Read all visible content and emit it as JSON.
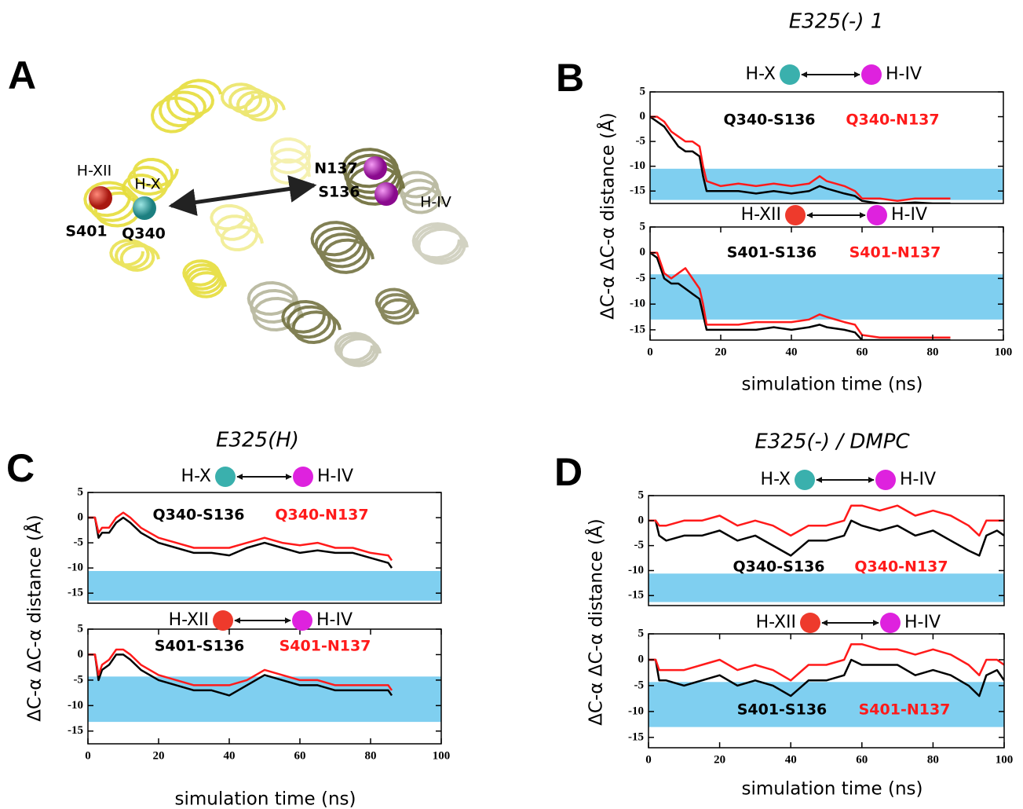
{
  "panel_a": {
    "letter": "A",
    "labels": [
      "H-XII",
      "H-X",
      "S401",
      "Q340",
      "N137",
      "S136",
      "H-IV"
    ]
  },
  "chart_data": [
    {
      "type": "line",
      "panel_label": "B",
      "title": "E325(-) 1",
      "ylabel": "ΔC-α ΔC-α distance (Å)",
      "pair": [
        {
          "label": "H-X",
          "color": "#3ab0ad"
        },
        {
          "label": "H-IV",
          "color": "#de22de"
        }
      ],
      "shaded_range": [
        -16.8,
        -10.5
      ],
      "shade_color": "#7fcff0",
      "xlim": [
        0,
        100
      ],
      "ylim": [
        -17.5,
        5
      ],
      "yticks": [
        5,
        0,
        -5,
        -10,
        -15
      ],
      "x": [
        0,
        2,
        4,
        6,
        8,
        10,
        12,
        14,
        15,
        16,
        20,
        25,
        30,
        35,
        40,
        45,
        48,
        50,
        55,
        58,
        60,
        65,
        70,
        75,
        80,
        85
      ],
      "series": [
        {
          "name": "Q340-S136",
          "color": "#000000",
          "values": [
            0,
            -1,
            -2,
            -4,
            -6,
            -7,
            -7,
            -8,
            -12,
            -15,
            -15,
            -15,
            -15.5,
            -15,
            -15.5,
            -15,
            -14,
            -14.5,
            -15.5,
            -16,
            -17,
            -17.5,
            -17.5,
            -17.3,
            -17.5,
            -17.5
          ]
        },
        {
          "name": "Q340-N137",
          "color": "#ff1a1a",
          "values": [
            0,
            0,
            -1,
            -3,
            -4,
            -5,
            -5,
            -6,
            -10,
            -13,
            -14,
            -13.5,
            -14,
            -13.5,
            -14,
            -13.5,
            -12,
            -13,
            -14,
            -15,
            -16.5,
            -16.5,
            -17,
            -16.5,
            -16.5,
            -16.5
          ]
        }
      ]
    },
    {
      "type": "line",
      "xlabel": "simulation time (ns)",
      "pair": [
        {
          "label": "H-XII",
          "color": "#ee3a2c"
        },
        {
          "label": "H-IV",
          "color": "#de22de"
        }
      ],
      "shaded_range": [
        -13,
        -4.2
      ],
      "shade_color": "#7fcff0",
      "xlim": [
        0,
        100
      ],
      "ylim": [
        -17,
        5
      ],
      "yticks": [
        5,
        0,
        -5,
        -10,
        -15
      ],
      "xticks": [
        0,
        20,
        40,
        60,
        80,
        100
      ],
      "x": [
        0,
        2,
        4,
        6,
        8,
        10,
        12,
        14,
        15,
        16,
        20,
        25,
        30,
        35,
        40,
        45,
        48,
        50,
        55,
        58,
        60,
        65,
        70,
        75,
        80,
        85
      ],
      "series": [
        {
          "name": "S401-S136",
          "color": "#000000",
          "values": [
            0,
            -1,
            -5,
            -6,
            -6,
            -7,
            -8,
            -9,
            -12,
            -15,
            -15,
            -15,
            -15,
            -14.5,
            -15,
            -14.5,
            -14,
            -14.5,
            -15,
            -15.5,
            -17,
            -17,
            -17,
            -17,
            -17,
            -17
          ]
        },
        {
          "name": "S401-N137",
          "color": "#ff1a1a",
          "values": [
            0,
            0,
            -4,
            -5,
            -4,
            -3,
            -5,
            -7,
            -10,
            -14,
            -14,
            -14,
            -13.5,
            -13.5,
            -13.5,
            -13,
            -12,
            -12.5,
            -13.5,
            -14,
            -16,
            -16.5,
            -16.5,
            -16.5,
            -16.5,
            -16.5
          ]
        }
      ]
    },
    {
      "type": "line",
      "panel_label": "C",
      "title": "E325(H)",
      "ylabel": "ΔC-α ΔC-α distance (Å)",
      "pair": [
        {
          "label": "H-X",
          "color": "#3ab0ad"
        },
        {
          "label": "H-IV",
          "color": "#de22de"
        }
      ],
      "shaded_range": [
        -16.5,
        -10.6
      ],
      "shade_color": "#7fcff0",
      "xlim": [
        0,
        100
      ],
      "ylim": [
        -17,
        5
      ],
      "yticks": [
        5,
        0,
        -5,
        -10,
        -15
      ],
      "x": [
        0,
        2,
        3,
        4,
        6,
        8,
        10,
        12,
        15,
        20,
        25,
        30,
        35,
        40,
        45,
        50,
        55,
        60,
        65,
        70,
        75,
        80,
        85,
        86
      ],
      "series": [
        {
          "name": "Q340-S136",
          "color": "#000000",
          "values": [
            0,
            0,
            -4,
            -3,
            -3,
            -1,
            0,
            -1,
            -3,
            -5,
            -6,
            -7,
            -7,
            -7.5,
            -6,
            -5,
            -6,
            -7,
            -6.5,
            -7,
            -7,
            -8,
            -9,
            -10
          ]
        },
        {
          "name": "Q340-N137",
          "color": "#ff1a1a",
          "values": [
            0,
            0,
            -3,
            -2,
            -2,
            0,
            1,
            0,
            -2,
            -4,
            -5,
            -6,
            -6,
            -6,
            -5,
            -4,
            -5,
            -5.5,
            -5,
            -6,
            -6,
            -7,
            -7.5,
            -8.5
          ]
        }
      ]
    },
    {
      "type": "line",
      "xlabel": "simulation time (ns)",
      "pair": [
        {
          "label": "H-XII",
          "color": "#ee3a2c"
        },
        {
          "label": "H-IV",
          "color": "#de22de"
        }
      ],
      "shaded_range": [
        -13.2,
        -4.3
      ],
      "shade_color": "#7fcff0",
      "xlim": [
        0,
        100
      ],
      "ylim": [
        -17.5,
        5
      ],
      "yticks": [
        5,
        0,
        -5,
        -10,
        -15
      ],
      "xticks": [
        0,
        20,
        40,
        60,
        80,
        100
      ],
      "x": [
        0,
        2,
        3,
        4,
        6,
        8,
        10,
        12,
        15,
        20,
        25,
        30,
        35,
        40,
        45,
        50,
        55,
        60,
        65,
        70,
        75,
        80,
        85,
        86
      ],
      "series": [
        {
          "name": "S401-S136",
          "color": "#000000",
          "values": [
            0,
            0,
            -5,
            -3,
            -2,
            0,
            0,
            -1,
            -3,
            -5,
            -6,
            -7,
            -7,
            -8,
            -6,
            -4,
            -5,
            -6,
            -6,
            -7,
            -7,
            -7,
            -7,
            -8
          ]
        },
        {
          "name": "S401-N137",
          "color": "#ff1a1a",
          "values": [
            0,
            0,
            -4,
            -2,
            -1,
            1,
            1,
            0,
            -2,
            -4,
            -5,
            -6,
            -6,
            -6,
            -5,
            -3,
            -4,
            -5,
            -5,
            -6,
            -6,
            -6,
            -6,
            -7
          ]
        }
      ]
    },
    {
      "type": "line",
      "panel_label": "D",
      "title": "E325(-) / DMPC",
      "ylabel": "ΔC-α ΔC-α distance (Å)",
      "pair": [
        {
          "label": "H-X",
          "color": "#3ab0ad"
        },
        {
          "label": "H-IV",
          "color": "#de22de"
        }
      ],
      "shaded_range": [
        -16.3,
        -10.6
      ],
      "shade_color": "#7fcff0",
      "xlim": [
        0,
        100
      ],
      "ylim": [
        -17,
        5
      ],
      "yticks": [
        5,
        0,
        -5,
        -10,
        -15
      ],
      "x": [
        0,
        2,
        3,
        5,
        10,
        15,
        20,
        25,
        30,
        35,
        40,
        45,
        50,
        55,
        57,
        60,
        65,
        70,
        75,
        80,
        85,
        90,
        93,
        95,
        98,
        100
      ],
      "series": [
        {
          "name": "Q340-S136",
          "color": "#000000",
          "values": [
            0,
            0,
            -3,
            -4,
            -3,
            -3,
            -2,
            -4,
            -3,
            -5,
            -7,
            -4,
            -4,
            -3,
            0,
            -1,
            -2,
            -1,
            -3,
            -2,
            -4,
            -6,
            -7,
            -3,
            -2,
            -3
          ]
        },
        {
          "name": "Q340-N137",
          "color": "#ff1a1a",
          "values": [
            0,
            0,
            -1,
            -1,
            0,
            0,
            1,
            -1,
            0,
            -1,
            -3,
            -1,
            -1,
            0,
            3,
            3,
            2,
            3,
            1,
            2,
            1,
            -1,
            -3,
            0,
            0,
            0
          ]
        }
      ]
    },
    {
      "type": "line",
      "xlabel": "simulation time (ns)",
      "pair": [
        {
          "label": "H-XII",
          "color": "#ee3a2c"
        },
        {
          "label": "H-IV",
          "color": "#de22de"
        }
      ],
      "shaded_range": [
        -13,
        -4.3
      ],
      "shade_color": "#7fcff0",
      "xlim": [
        0,
        100
      ],
      "ylim": [
        -17,
        5
      ],
      "yticks": [
        5,
        0,
        -5,
        -10,
        -15
      ],
      "xticks": [
        0,
        20,
        40,
        60,
        80,
        100
      ],
      "x": [
        0,
        2,
        3,
        5,
        10,
        15,
        20,
        25,
        30,
        35,
        40,
        45,
        50,
        55,
        57,
        60,
        65,
        70,
        75,
        80,
        85,
        90,
        93,
        95,
        98,
        100
      ],
      "series": [
        {
          "name": "S401-S136",
          "color": "#000000",
          "values": [
            0,
            0,
            -4,
            -4,
            -5,
            -4,
            -3,
            -5,
            -4,
            -5,
            -7,
            -4,
            -4,
            -3,
            0,
            -1,
            -1,
            -1,
            -3,
            -2,
            -3,
            -5,
            -7,
            -3,
            -2,
            -4
          ]
        },
        {
          "name": "S401-N137",
          "color": "#ff1a1a",
          "values": [
            0,
            0,
            -2,
            -2,
            -2,
            -1,
            0,
            -2,
            -1,
            -2,
            -4,
            -1,
            -1,
            0,
            3,
            3,
            2,
            2,
            1,
            2,
            1,
            -1,
            -3,
            0,
            0,
            -1
          ]
        }
      ]
    }
  ]
}
